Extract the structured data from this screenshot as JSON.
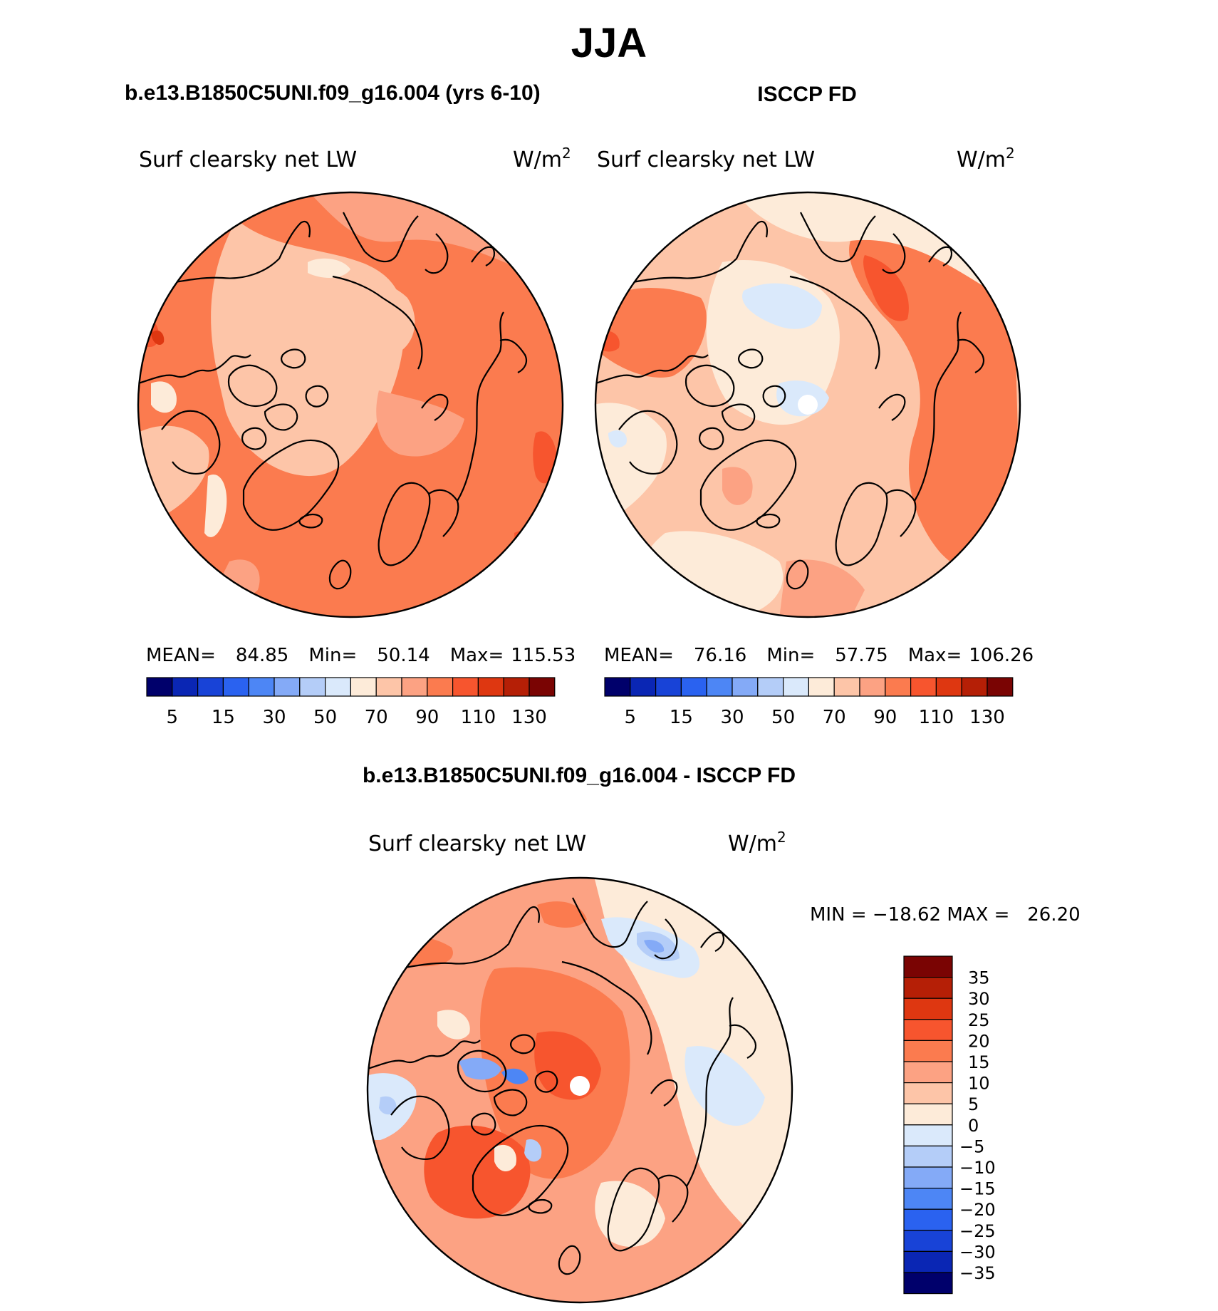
{
  "page_title": "JJA",
  "panels": [
    {
      "id": "model",
      "case_title": "b.e13.B1850C5UNI.f09_g16.004 (yrs 6-10)",
      "variable": "Surf clearsky net LW",
      "units_base": "W/m",
      "units_exp": "2",
      "stats": {
        "mean_label": "MEAN=",
        "mean": "84.85",
        "min_label": "Min=",
        "min": "50.14",
        "max_label": "Max=",
        "max": "115.53"
      },
      "dominant_color": "#fb7b4f"
    },
    {
      "id": "obs",
      "case_title": "ISCCP FD",
      "variable": "Surf clearsky net LW",
      "units_base": "W/m",
      "units_exp": "2",
      "stats": {
        "mean_label": "MEAN=",
        "mean": "76.16",
        "min_label": "Min=",
        "min": "57.75",
        "max_label": "Max=",
        "max": "106.26"
      },
      "dominant_color": "#fdc5a8"
    },
    {
      "id": "diff",
      "case_title": "b.e13.B1850C5UNI.f09_g16.004 - ISCCP FD",
      "variable": "Surf clearsky net LW",
      "units_base": "W/m",
      "units_exp": "2",
      "minmax_text": "MIN = −18.62 MAX =   26.20",
      "dominant_color": "#fca283"
    }
  ],
  "colorbar_abs": {
    "colors": [
      "#00006b",
      "#0a26b4",
      "#1843d7",
      "#2a62f0",
      "#4d86f5",
      "#84aaf7",
      "#b4cdf8",
      "#dae9fb",
      "#fdebd9",
      "#fdc5a8",
      "#fca283",
      "#fb7b4f",
      "#f7552e",
      "#de3711",
      "#b51f06",
      "#7a0403"
    ],
    "tick_labels": [
      "5",
      "15",
      "30",
      "50",
      "70",
      "90",
      "110",
      "130"
    ]
  },
  "colorbar_diff": {
    "colors": [
      "#7a0403",
      "#b51f06",
      "#de3711",
      "#f7552e",
      "#fb7b4f",
      "#fca283",
      "#fdc5a8",
      "#fdebd9",
      "#dae9fb",
      "#b4cdf8",
      "#84aaf7",
      "#4d86f5",
      "#2a62f0",
      "#1843d7",
      "#0a26b4",
      "#00006b"
    ],
    "tick_labels": [
      "35",
      "30",
      "25",
      "20",
      "15",
      "10",
      "5",
      "0",
      "−5",
      "−10",
      "−15",
      "−20",
      "−25",
      "−30",
      "−35"
    ]
  }
}
